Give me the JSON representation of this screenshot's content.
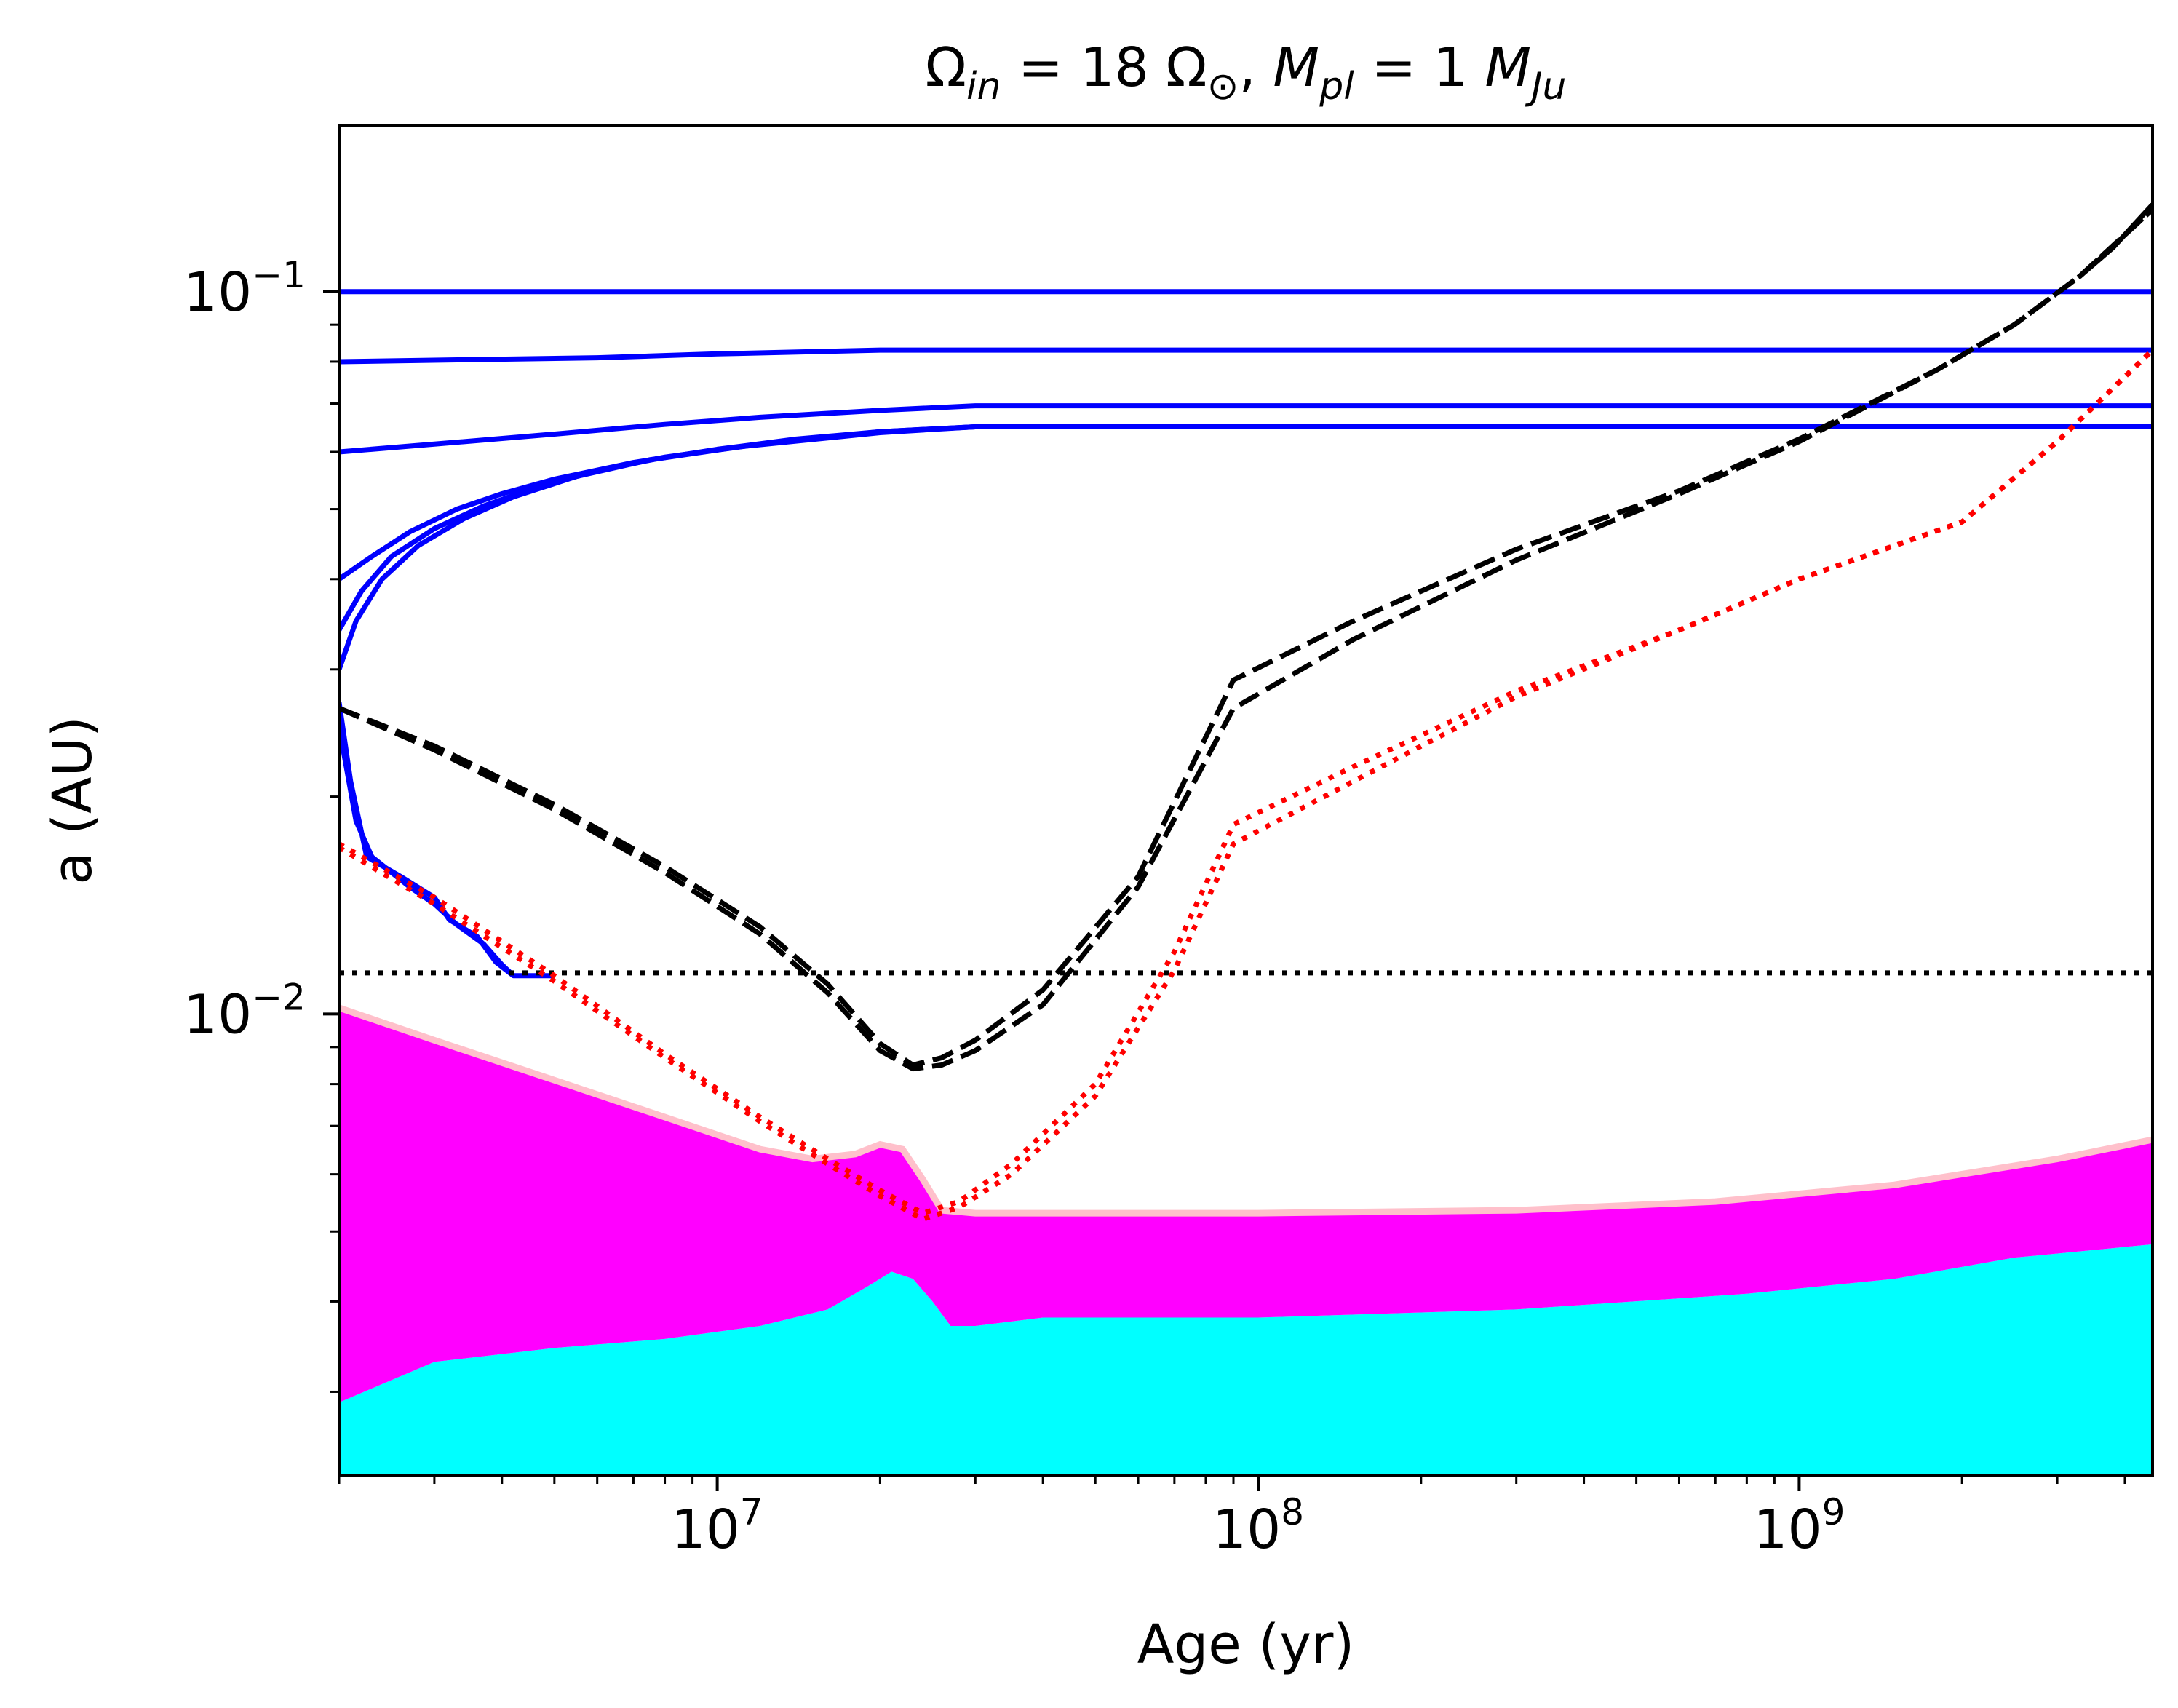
{
  "chart_data": {
    "type": "line",
    "title": {
      "omega_symbol": "Ω",
      "omega_sub": "in",
      "omega_value": " = 18 Ω",
      "sun_symbol": "⊙",
      "sep": ", ",
      "mass_symbol": "M",
      "mass_sub": "pl",
      "mass_value": " = 1 ",
      "mass_unit": "M",
      "mass_unit_sub": "Ju"
    },
    "xlabel": "Age (yr)",
    "ylabel": "a (AU)",
    "xscale": "log",
    "yscale": "log",
    "xlim": [
      2000000,
      4500000000
    ],
    "ylim": [
      0.0023,
      0.17
    ],
    "grid": false,
    "x_ticks": [
      {
        "value": 10000000,
        "base": "10",
        "exp": "7"
      },
      {
        "value": 100000000,
        "base": "10",
        "exp": "8"
      },
      {
        "value": 1000000000,
        "base": "10",
        "exp": "9"
      }
    ],
    "y_ticks": [
      {
        "value": 0.01,
        "base": "10",
        "exp": "−2"
      },
      {
        "value": 0.1,
        "base": "10",
        "exp": "−1"
      }
    ],
    "colors": {
      "blue": "#0000ff",
      "black": "#000000",
      "red": "#ff0000",
      "magenta": "#ff00ff",
      "cyan": "#00ffff",
      "pink": "#ffc0cb"
    },
    "filled_regions": [
      {
        "color": "#00ffff",
        "lower": 0.0023,
        "upper": [
          [
            2000000,
            0.0029
          ],
          [
            3000000,
            0.0033
          ],
          [
            5000000,
            0.00345
          ],
          [
            8000000,
            0.00355
          ],
          [
            12000000,
            0.0037
          ],
          [
            16000000,
            0.0039
          ],
          [
            19000000,
            0.0042
          ],
          [
            21000000,
            0.0044
          ],
          [
            23000000,
            0.0043
          ],
          [
            25000000,
            0.004
          ],
          [
            27000000,
            0.0037
          ],
          [
            30000000,
            0.0037
          ],
          [
            40000000,
            0.0038
          ],
          [
            60000000,
            0.0038
          ],
          [
            100000000,
            0.0038
          ],
          [
            300000000,
            0.0039
          ],
          [
            800000000,
            0.0041
          ],
          [
            1500000000,
            0.0043
          ],
          [
            2500000000,
            0.0046
          ],
          [
            4500000000,
            0.0048
          ]
        ]
      },
      {
        "color": "#ff00ff",
        "lower_ref": "cyan_upper",
        "upper": [
          [
            2000000,
            0.0102
          ],
          [
            3000000,
            0.0092
          ],
          [
            5000000,
            0.0081
          ],
          [
            8000000,
            0.0072
          ],
          [
            12000000,
            0.0065
          ],
          [
            15000000,
            0.0063
          ],
          [
            18000000,
            0.0064
          ],
          [
            20000000,
            0.0066
          ],
          [
            22000000,
            0.0065
          ],
          [
            24000000,
            0.0059
          ],
          [
            26000000,
            0.00535
          ],
          [
            30000000,
            0.0053
          ],
          [
            50000000,
            0.0053
          ],
          [
            100000000,
            0.0053
          ],
          [
            300000000,
            0.00535
          ],
          [
            700000000,
            0.0055
          ],
          [
            1500000000,
            0.0058
          ],
          [
            3000000000,
            0.0063
          ],
          [
            4500000000,
            0.0067
          ]
        ]
      }
    ],
    "series": [
      {
        "style": "solid",
        "color": "#0000ff",
        "x": [
          2000000,
          6000000,
          10000000,
          20000000,
          50000000,
          100000000,
          500000000,
          1000000000,
          4500000000
        ],
        "y": [
          0.1,
          0.1,
          0.1,
          0.1,
          0.1,
          0.1,
          0.1,
          0.1,
          0.1
        ]
      },
      {
        "style": "solid",
        "color": "#0000ff",
        "x": [
          2000000,
          6000000,
          10000000,
          20000000,
          50000000,
          100000000,
          500000000,
          1000000000,
          4500000000
        ],
        "y": [
          0.08,
          0.081,
          0.082,
          0.083,
          0.083,
          0.083,
          0.083,
          0.083,
          0.083
        ]
      },
      {
        "style": "solid",
        "color": "#0000ff",
        "x": [
          2000000,
          3000000,
          5000000,
          8000000,
          12000000,
          20000000,
          30000000,
          100000000,
          1000000000,
          4500000000
        ],
        "y": [
          0.06,
          0.0615,
          0.0635,
          0.0655,
          0.067,
          0.0685,
          0.0695,
          0.0695,
          0.0695,
          0.0695
        ]
      },
      {
        "style": "solid",
        "color": "#0000ff",
        "x": [
          2000000,
          2300000,
          2700000,
          3300000,
          4000000,
          5000000,
          7000000,
          10000000,
          14000000,
          20000000,
          30000000,
          100000000,
          1000000000,
          4500000000
        ],
        "y": [
          0.04,
          0.043,
          0.0465,
          0.05,
          0.0525,
          0.055,
          0.058,
          0.0605,
          0.0625,
          0.064,
          0.065,
          0.065,
          0.065,
          0.065
        ]
      },
      {
        "style": "solid",
        "color": "#0000ff",
        "x": [
          2000000,
          2200000,
          2500000,
          3000000,
          3700000,
          4600000,
          6000000,
          8000000,
          12000000,
          20000000,
          30000000,
          100000000,
          1000000000,
          4500000000
        ],
        "y": [
          0.034,
          0.0385,
          0.043,
          0.047,
          0.0505,
          0.0535,
          0.0565,
          0.059,
          0.0615,
          0.064,
          0.065,
          0.065,
          0.065,
          0.065
        ]
      },
      {
        "style": "solid",
        "color": "#0000ff",
        "x": [
          2000000,
          2150000,
          2400000,
          2800000,
          3400000,
          4200000,
          5500000,
          7500000,
          11000000,
          20000000,
          30000000,
          100000000,
          1000000000,
          4500000000
        ],
        "y": [
          0.03,
          0.035,
          0.04,
          0.0445,
          0.0485,
          0.052,
          0.0555,
          0.0585,
          0.061,
          0.0638,
          0.065,
          0.065,
          0.065,
          0.065
        ]
      },
      {
        "style": "solid",
        "color": "#0000ff",
        "x": [
          2000000,
          2100000,
          2250000,
          2600000,
          3000000,
          3200000,
          3600000,
          3900000,
          4200000,
          4600000,
          5000000
        ],
        "y": [
          0.027,
          0.021,
          0.0165,
          0.0155,
          0.0145,
          0.0135,
          0.0128,
          0.0118,
          0.0113,
          0.0113,
          0.0113
        ]
      },
      {
        "style": "solid",
        "color": "#0000ff",
        "x": [
          2000000,
          2150000,
          2300000,
          2700000,
          3000000,
          3300000,
          3700000,
          4000000,
          4200000
        ],
        "y": [
          0.025,
          0.0185,
          0.0165,
          0.015,
          0.0142,
          0.0133,
          0.0125,
          0.0117,
          0.0113
        ]
      },
      {
        "style": "dotted",
        "color": "#000000",
        "x": [
          2000000,
          4500000000
        ],
        "y": [
          0.0114,
          0.0114
        ]
      },
      {
        "style": "dashed",
        "color": "#000000",
        "x": [
          2000000,
          3000000,
          5000000,
          8000000,
          12000000,
          16000000,
          20000000,
          23000000,
          26000000,
          30000000,
          40000000,
          60000000,
          90000000,
          150000000,
          300000000,
          600000000,
          1000000000,
          1800000000,
          2500000000,
          3300000000,
          4500000000
        ],
        "y": [
          0.0265,
          0.0235,
          0.0195,
          0.016,
          0.0132,
          0.011,
          0.0091,
          0.0085,
          0.0087,
          0.0092,
          0.0108,
          0.0155,
          0.029,
          0.035,
          0.044,
          0.053,
          0.0625,
          0.078,
          0.09,
          0.105,
          0.13
        ]
      },
      {
        "style": "dashed",
        "color": "#000000",
        "x": [
          2000000,
          3000000,
          5000000,
          8000000,
          12000000,
          16000000,
          20000000,
          23000000,
          26000000,
          30000000,
          40000000,
          60000000,
          90000000,
          150000000,
          300000000,
          600000000,
          1000000000,
          1800000000,
          2500000000,
          3300000000,
          4500000000
        ],
        "y": [
          0.0265,
          0.0232,
          0.0192,
          0.0157,
          0.0129,
          0.0107,
          0.0089,
          0.0084,
          0.0085,
          0.0089,
          0.0103,
          0.015,
          0.0265,
          0.033,
          0.0425,
          0.0525,
          0.062,
          0.078,
          0.09,
          0.105,
          0.13
        ]
      },
      {
        "style": "solid",
        "color": "#000000",
        "x": [
          3300000000,
          3800000000,
          4500000000
        ],
        "y": [
          0.105,
          0.115,
          0.132
        ]
      },
      {
        "style": "dotted",
        "color": "#ff0000",
        "x": [
          2000000,
          3000000,
          5000000,
          8000000,
          12000000,
          16000000,
          20000000,
          24000000,
          28000000,
          35000000,
          50000000,
          70000000,
          90000000,
          150000000,
          300000000,
          600000000,
          1000000000,
          2000000000,
          3000000000,
          4500000000
        ],
        "y": [
          0.0172,
          0.0145,
          0.0113,
          0.0088,
          0.0072,
          0.0063,
          0.0057,
          0.0053,
          0.0055,
          0.0062,
          0.008,
          0.0122,
          0.0183,
          0.022,
          0.028,
          0.034,
          0.04,
          0.048,
          0.062,
          0.083
        ]
      },
      {
        "style": "dotted",
        "color": "#ff0000",
        "x": [
          2000000,
          3000000,
          5000000,
          8000000,
          12000000,
          16000000,
          20000000,
          24000000,
          28000000,
          35000000,
          50000000,
          70000000,
          90000000,
          150000000,
          300000000,
          600000000,
          1000000000,
          2000000000,
          3000000000,
          4500000000
        ],
        "y": [
          0.017,
          0.0142,
          0.0111,
          0.0087,
          0.0071,
          0.0062,
          0.0056,
          0.0052,
          0.0054,
          0.006,
          0.0077,
          0.0115,
          0.0172,
          0.021,
          0.0275,
          0.034,
          0.04,
          0.048,
          0.062,
          0.083
        ]
      }
    ]
  }
}
